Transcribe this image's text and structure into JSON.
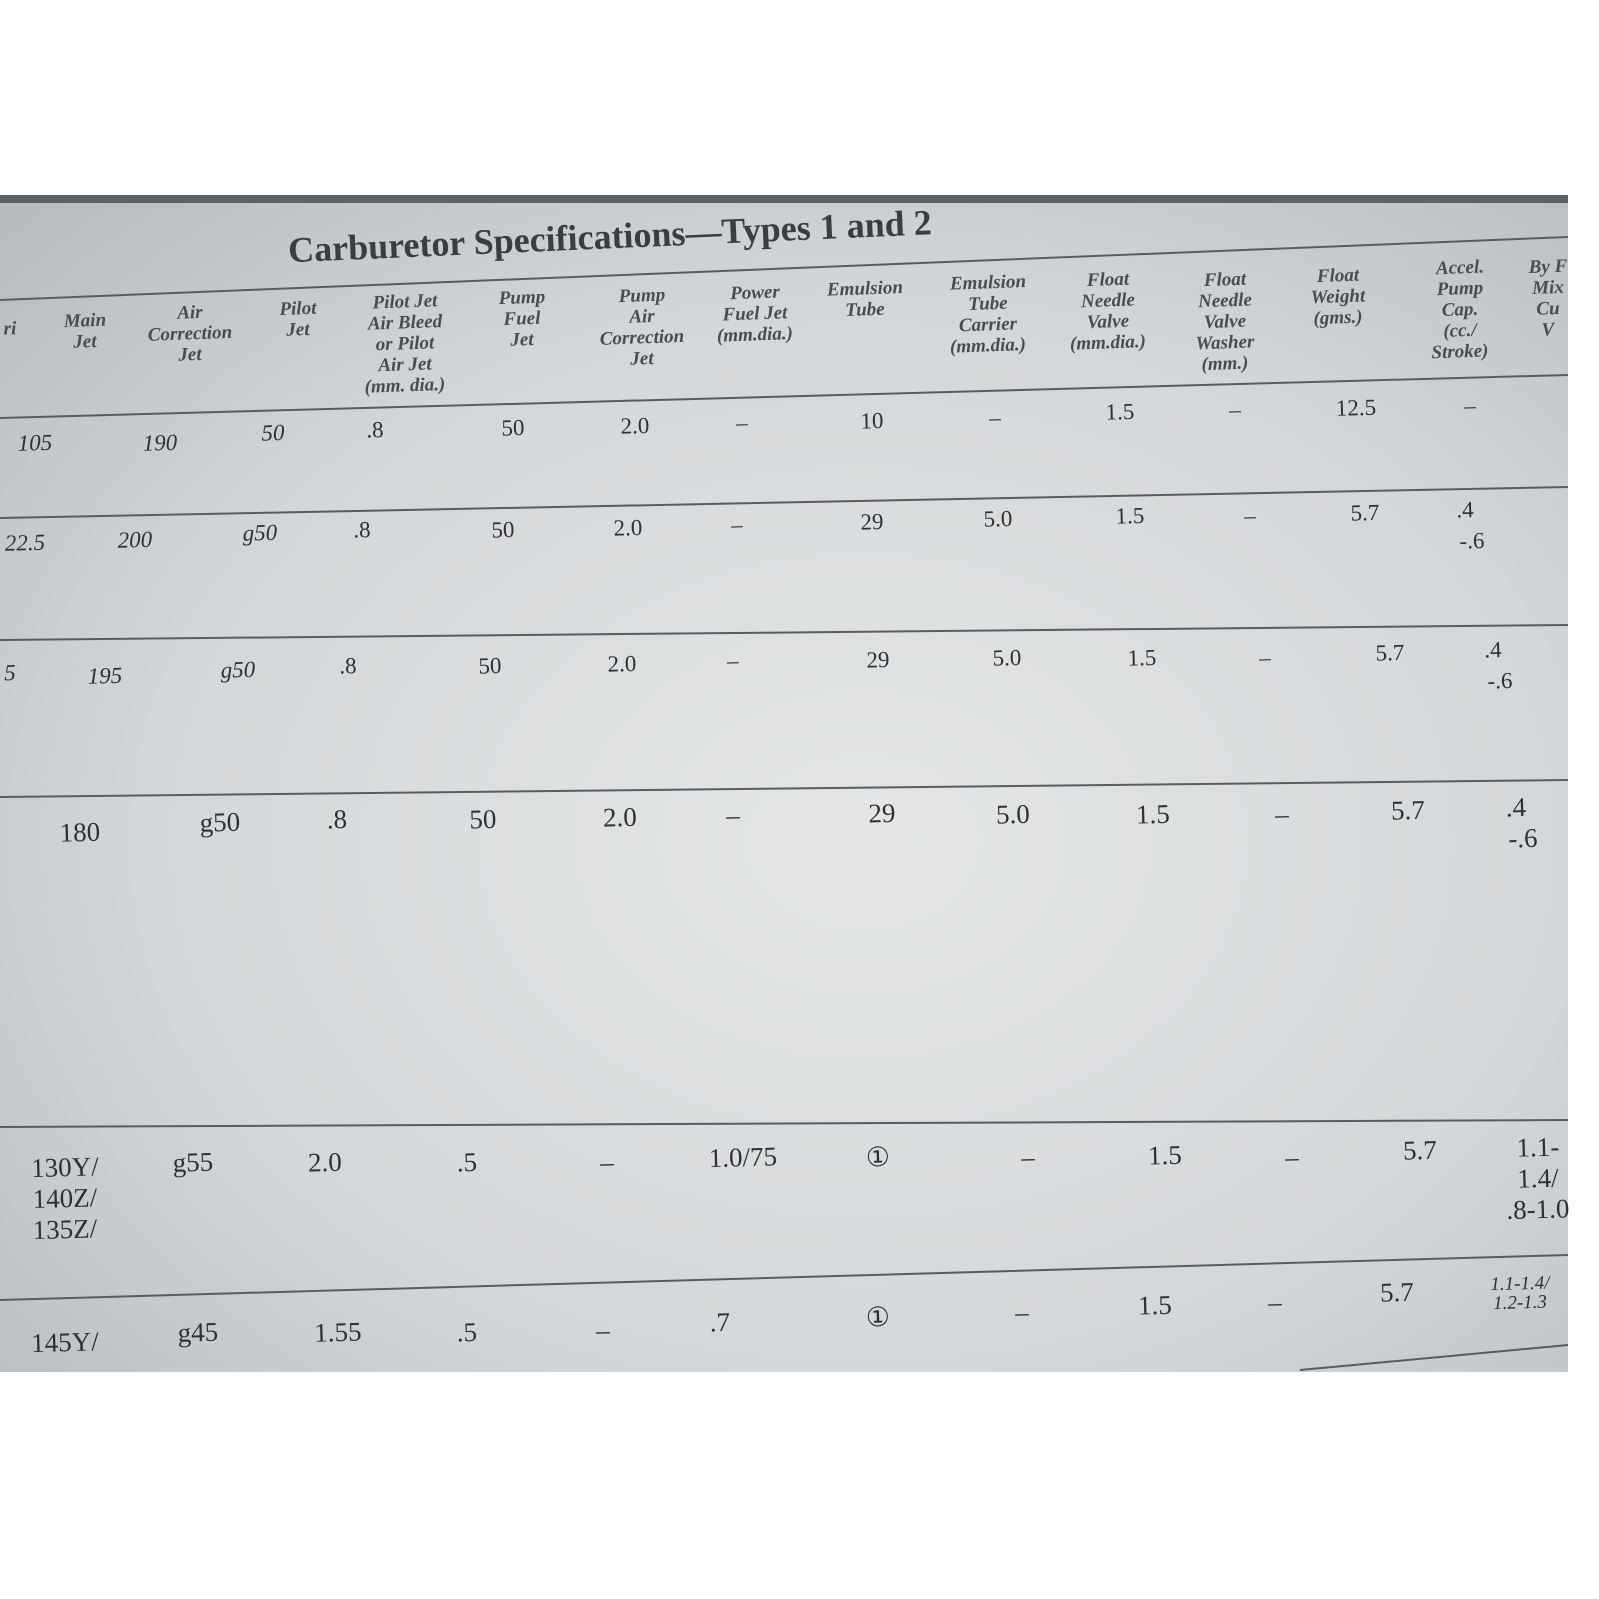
{
  "title": "Carburetor Specifications—Types 1 and 2",
  "table": {
    "headers": [
      [
        "ri"
      ],
      [
        "Main",
        "Jet"
      ],
      [
        "Air",
        "Correction",
        "Jet"
      ],
      [
        "Pilot",
        "Jet"
      ],
      [
        "Pilot Jet",
        "Air Bleed",
        "or Pilot",
        "Air Jet",
        "(mm. dia.)"
      ],
      [
        "Pump",
        "Fuel",
        "Jet"
      ],
      [
        "Pump",
        "Air",
        "Correction",
        "Jet"
      ],
      [
        "Power",
        "Fuel Jet",
        "(mm.dia.)"
      ],
      [
        "Emulsion",
        "Tube"
      ],
      [
        "Emulsion",
        "Tube",
        "Carrier",
        "(mm.dia.)"
      ],
      [
        "Float",
        "Needle",
        "Valve",
        "(mm.dia.)"
      ],
      [
        "Float",
        "Needle",
        "Valve",
        "Washer",
        "(mm.)"
      ],
      [
        "Float",
        "Weight",
        "(gms.)"
      ],
      [
        "Accel.",
        "Pump",
        "Cap.",
        "(cc./",
        "Stroke)"
      ],
      [
        "By F",
        "Mix",
        "Cu",
        "V"
      ]
    ],
    "rows": [
      [
        [
          "105"
        ],
        [
          "190"
        ],
        [
          "50"
        ],
        [
          ".8"
        ],
        [
          "50"
        ],
        [
          "2.0"
        ],
        [
          "–"
        ],
        [
          "10"
        ],
        [
          "–"
        ],
        [
          "1.5"
        ],
        [
          "–"
        ],
        [
          "12.5"
        ],
        [
          "–"
        ]
      ],
      [
        [
          "22.5"
        ],
        [
          "200"
        ],
        [
          "g50"
        ],
        [
          ".8"
        ],
        [
          "50"
        ],
        [
          "2.0"
        ],
        [
          "–"
        ],
        [
          "29"
        ],
        [
          "5.0"
        ],
        [
          "1.5"
        ],
        [
          "–"
        ],
        [
          "5.7"
        ],
        [
          ".4",
          "-.6"
        ]
      ],
      [
        [
          "5"
        ],
        [
          "195"
        ],
        [
          "g50"
        ],
        [
          ".8"
        ],
        [
          "50"
        ],
        [
          "2.0"
        ],
        [
          "–"
        ],
        [
          "29"
        ],
        [
          "5.0"
        ],
        [
          "1.5"
        ],
        [
          "–"
        ],
        [
          "5.7"
        ],
        [
          ".4",
          "-.6"
        ]
      ],
      [
        [
          "180"
        ],
        [
          "g50"
        ],
        [
          ".8"
        ],
        [
          "50"
        ],
        [
          "2.0"
        ],
        [
          "–"
        ],
        [
          "29"
        ],
        [
          "5.0"
        ],
        [
          "1.5"
        ],
        [
          "–"
        ],
        [
          "5.7"
        ],
        [
          ".4",
          "-.6"
        ]
      ],
      [
        [
          "130Y/",
          "140Z/",
          "135Z/"
        ],
        [
          "g55"
        ],
        [
          "2.0"
        ],
        [
          ".5"
        ],
        [
          "–"
        ],
        [
          "1.0/75"
        ],
        [
          "①"
        ],
        [
          "–"
        ],
        [
          "1.5"
        ],
        [
          "–"
        ],
        [
          "5.7"
        ],
        [
          "1.1-",
          "1.4/",
          ".8-1.0"
        ]
      ],
      [
        [
          "145Y/"
        ],
        [
          "g45"
        ],
        [
          "1.55"
        ],
        [
          ".5"
        ],
        [
          "–"
        ],
        [
          ".7"
        ],
        [
          "①"
        ],
        [
          "–"
        ],
        [
          "1.5"
        ],
        [
          "–"
        ],
        [
          "5.7"
        ],
        [
          "1.1-1.4/",
          "1.2-1.3"
        ]
      ]
    ]
  }
}
